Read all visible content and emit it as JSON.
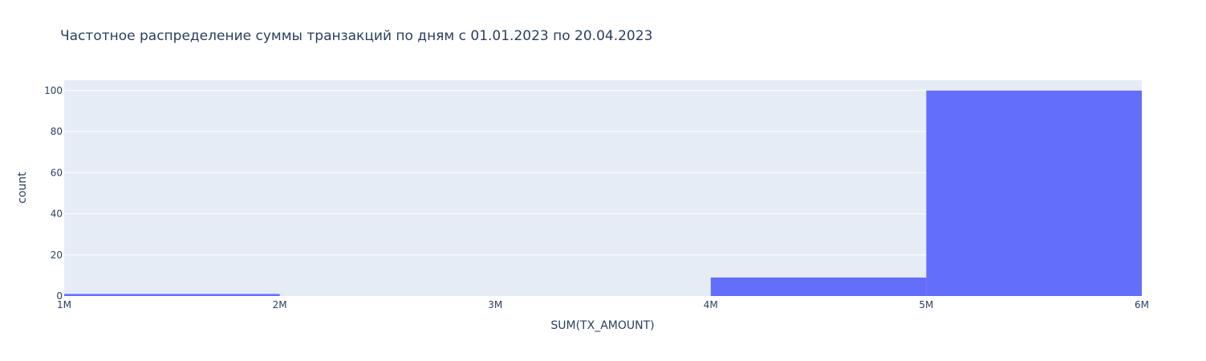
{
  "chart_data": {
    "type": "bar",
    "title": "Частотное распределение суммы транзакций по дням с 01.01.2023 по 20.04.2023",
    "xlabel": "SUM(TX_AMOUNT)",
    "ylabel": "count",
    "xlim": [
      1000000,
      6000000
    ],
    "ylim": [
      0,
      105
    ],
    "x_ticks": [
      {
        "value": 1000000,
        "label": "1M"
      },
      {
        "value": 2000000,
        "label": "2M"
      },
      {
        "value": 3000000,
        "label": "3M"
      },
      {
        "value": 4000000,
        "label": "4M"
      },
      {
        "value": 5000000,
        "label": "5M"
      },
      {
        "value": 6000000,
        "label": "6M"
      }
    ],
    "y_ticks": [
      {
        "value": 0,
        "label": "0"
      },
      {
        "value": 20,
        "label": "20"
      },
      {
        "value": 40,
        "label": "40"
      },
      {
        "value": 60,
        "label": "60"
      },
      {
        "value": 80,
        "label": "80"
      },
      {
        "value": 100,
        "label": "100"
      }
    ],
    "bins": [
      {
        "start": 1000000,
        "end": 2000000,
        "count": 1
      },
      {
        "start": 2000000,
        "end": 3000000,
        "count": 0
      },
      {
        "start": 3000000,
        "end": 4000000,
        "count": 0
      },
      {
        "start": 4000000,
        "end": 5000000,
        "count": 9
      },
      {
        "start": 5000000,
        "end": 6000000,
        "count": 100
      }
    ],
    "grid": true,
    "bar_color": "#636efa",
    "plot_bg": "#e5ecf6",
    "legend": "none"
  }
}
